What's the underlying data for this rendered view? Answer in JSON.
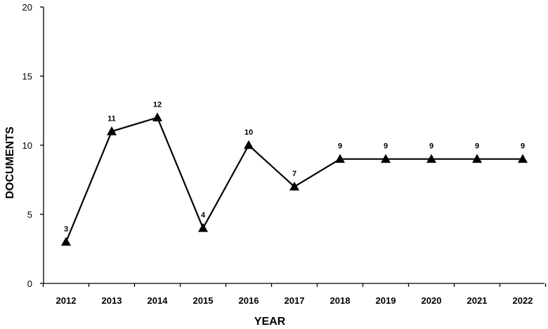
{
  "chart_data": {
    "type": "line",
    "title": "",
    "xlabel": "YEAR",
    "ylabel": "DOCUMENTS",
    "categories": [
      "2012",
      "2013",
      "2014",
      "2015",
      "2016",
      "2017",
      "2018",
      "2019",
      "2020",
      "2021",
      "2022"
    ],
    "series": [
      {
        "name": "Documents",
        "values": [
          3,
          11,
          12,
          4,
          10,
          7,
          9,
          9,
          9,
          9,
          9
        ],
        "marker": "triangle",
        "color": "#000000"
      }
    ],
    "ylim": [
      0,
      20
    ],
    "yticks": [
      "0",
      "5",
      "10",
      "15",
      "20"
    ],
    "data_labels": [
      "3",
      "11",
      "12",
      "4",
      "10",
      "7",
      "9",
      "9",
      "9",
      "9",
      "9"
    ],
    "grid": false,
    "legend": "none"
  }
}
